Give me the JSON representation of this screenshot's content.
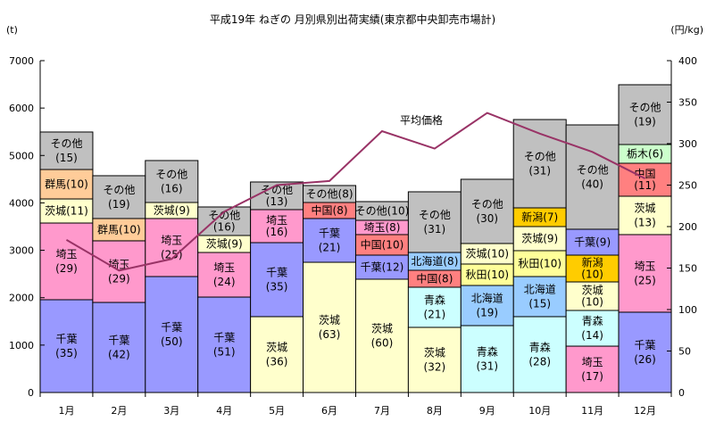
{
  "chart_data": {
    "type": "bar",
    "stacked": true,
    "title": "平成19年  ねぎの 月別県別出荷実績(東京都中央卸売市場計)",
    "ylabel": "(t)",
    "y2label": "(円/kg)",
    "ylim": [
      0,
      7000
    ],
    "y2lim": [
      0,
      400
    ],
    "yticks": [
      0,
      1000,
      2000,
      3000,
      4000,
      5000,
      6000,
      7000
    ],
    "y2ticks": [
      0,
      50,
      100,
      150,
      200,
      250,
      300,
      350,
      400
    ],
    "categories": [
      "1月",
      "2月",
      "3月",
      "4月",
      "5月",
      "6月",
      "7月",
      "8月",
      "9月",
      "10月",
      "11月",
      "12月"
    ],
    "colors": {
      "千葉": "#9999ff",
      "埼玉": "#ff99cc",
      "茨城": "#ffffcc",
      "群馬": "#ffcc99",
      "その他": "#c0c0c0",
      "中国": "#ff8080",
      "北海道": "#99ccff",
      "青森": "#ccffff",
      "秋田": "#ffff99",
      "新潟": "#ffcc00",
      "栃木": "#ccffcc",
      "line": "#993366"
    },
    "bars": [
      [
        {
          "name": "千葉",
          "value": 1957,
          "pct": "(35)",
          "wrap": true
        },
        {
          "name": "埼玉",
          "value": 1618,
          "pct": "(29)",
          "wrap": true
        },
        {
          "name": "茨城",
          "value": 508,
          "pct": "(11)",
          "wrap": false
        },
        {
          "name": "群馬",
          "value": 621,
          "pct": "(10)",
          "wrap": false
        },
        {
          "name": "その他",
          "value": 791,
          "pct": "(15)",
          "wrap": true
        }
      ],
      [
        {
          "name": "千葉",
          "value": 1900,
          "pct": "(42)",
          "wrap": true
        },
        {
          "name": "埼玉",
          "value": 1300,
          "pct": "(29)",
          "wrap": true
        },
        {
          "name": "群馬",
          "value": 470,
          "pct": "(10)",
          "wrap": false
        },
        {
          "name": "その他",
          "value": 903,
          "pct": "(19)",
          "wrap": true
        }
      ],
      [
        {
          "name": "千葉",
          "value": 2446,
          "pct": "(50)",
          "wrap": true
        },
        {
          "name": "埼玉",
          "value": 1224,
          "pct": "(25)",
          "wrap": true
        },
        {
          "name": "茨城",
          "value": 338,
          "pct": "(9)",
          "wrap": false
        },
        {
          "name": "その他",
          "value": 885,
          "pct": "(16)",
          "wrap": true
        }
      ],
      [
        {
          "name": "千葉",
          "value": 2013,
          "pct": "(51)",
          "wrap": true
        },
        {
          "name": "埼玉",
          "value": 941,
          "pct": "(24)",
          "wrap": true
        },
        {
          "name": "茨城",
          "value": 358,
          "pct": "(9)",
          "wrap": false
        },
        {
          "name": "その他",
          "value": 602,
          "pct": "(16)",
          "wrap": true
        }
      ],
      [
        {
          "name": "茨城",
          "value": 1600,
          "pct": "(36)",
          "wrap": true
        },
        {
          "name": "千葉",
          "value": 1561,
          "pct": "(35)",
          "wrap": true
        },
        {
          "name": "埼玉",
          "value": 697,
          "pct": "(16)",
          "wrap": true
        },
        {
          "name": "その他",
          "value": 583,
          "pct": "(13)",
          "wrap": true
        }
      ],
      [
        {
          "name": "茨城",
          "value": 2747,
          "pct": "(63)",
          "wrap": true
        },
        {
          "name": "千葉",
          "value": 923,
          "pct": "(21)",
          "wrap": true
        },
        {
          "name": "中国",
          "value": 338,
          "pct": "(8)",
          "wrap": false
        },
        {
          "name": "その他",
          "value": 358,
          "pct": "(8)",
          "wrap": true
        }
      ],
      [
        {
          "name": "茨城",
          "value": 2390,
          "pct": "(60)",
          "wrap": true
        },
        {
          "name": "千葉",
          "value": 508,
          "pct": "(12)",
          "wrap": false
        },
        {
          "name": "中国",
          "value": 433,
          "pct": "(10)",
          "wrap": false
        },
        {
          "name": "埼玉",
          "value": 301,
          "pct": "(8)",
          "wrap": false
        },
        {
          "name": "その他",
          "value": 395,
          "pct": "(10)",
          "wrap": true
        }
      ],
      [
        {
          "name": "茨城",
          "value": 1374,
          "pct": "(32)",
          "wrap": true
        },
        {
          "name": "青森",
          "value": 847,
          "pct": "(21)",
          "wrap": true
        },
        {
          "name": "中国",
          "value": 357,
          "pct": "(8)",
          "wrap": false
        },
        {
          "name": "北海道",
          "value": 376,
          "pct": "(8)",
          "wrap": false
        },
        {
          "name": "その他",
          "value": 1280,
          "pct": "(31)",
          "wrap": true
        }
      ],
      [
        {
          "name": "青森",
          "value": 1411,
          "pct": "(31)",
          "wrap": true
        },
        {
          "name": "北海道",
          "value": 847,
          "pct": "(19)",
          "wrap": true
        },
        {
          "name": "秋田",
          "value": 452,
          "pct": "(10)",
          "wrap": false
        },
        {
          "name": "茨城",
          "value": 433,
          "pct": "(10)",
          "wrap": false
        },
        {
          "name": "その他",
          "value": 1355,
          "pct": "(30)",
          "wrap": true
        }
      ],
      [
        {
          "name": "青森",
          "value": 1600,
          "pct": "(28)",
          "wrap": true
        },
        {
          "name": "北海道",
          "value": 846,
          "pct": "(15)",
          "wrap": true
        },
        {
          "name": "秋田",
          "value": 546,
          "pct": "(10)",
          "wrap": true
        },
        {
          "name": "茨城",
          "value": 508,
          "pct": "(9)",
          "wrap": false
        },
        {
          "name": "新潟",
          "value": 395,
          "pct": "(7)",
          "wrap": false
        },
        {
          "name": "その他",
          "value": 1863,
          "pct": "(31)",
          "wrap": true
        }
      ],
      [
        {
          "name": "埼玉",
          "value": 978,
          "pct": "(17)",
          "wrap": true
        },
        {
          "name": "青森",
          "value": 753,
          "pct": "(14)",
          "wrap": true
        },
        {
          "name": "茨城",
          "value": 602,
          "pct": "(10)",
          "wrap": true
        },
        {
          "name": "新潟",
          "value": 565,
          "pct": "(10)",
          "wrap": true
        },
        {
          "name": "千葉",
          "value": 546,
          "pct": "(9)",
          "wrap": true
        },
        {
          "name": "その他",
          "value": 2201,
          "pct": "(40)",
          "wrap": true
        }
      ],
      [
        {
          "name": "千葉",
          "value": 1694,
          "pct": "(26)",
          "wrap": true
        },
        {
          "name": "埼玉",
          "value": 1637,
          "pct": "(25)",
          "wrap": true
        },
        {
          "name": "茨城",
          "value": 809,
          "pct": "(13)",
          "wrap": true
        },
        {
          "name": "中国",
          "value": 696,
          "pct": "(11)",
          "wrap": true
        },
        {
          "name": "栃木",
          "value": 395,
          "pct": "(6)",
          "wrap": false
        },
        {
          "name": "その他",
          "value": 1261,
          "pct": "(19)",
          "wrap": true
        }
      ]
    ],
    "line": {
      "name": "平均価格",
      "axis": "right",
      "values": [
        184,
        147,
        161,
        218,
        250,
        255,
        315,
        294,
        337,
        312,
        290,
        258
      ]
    }
  }
}
